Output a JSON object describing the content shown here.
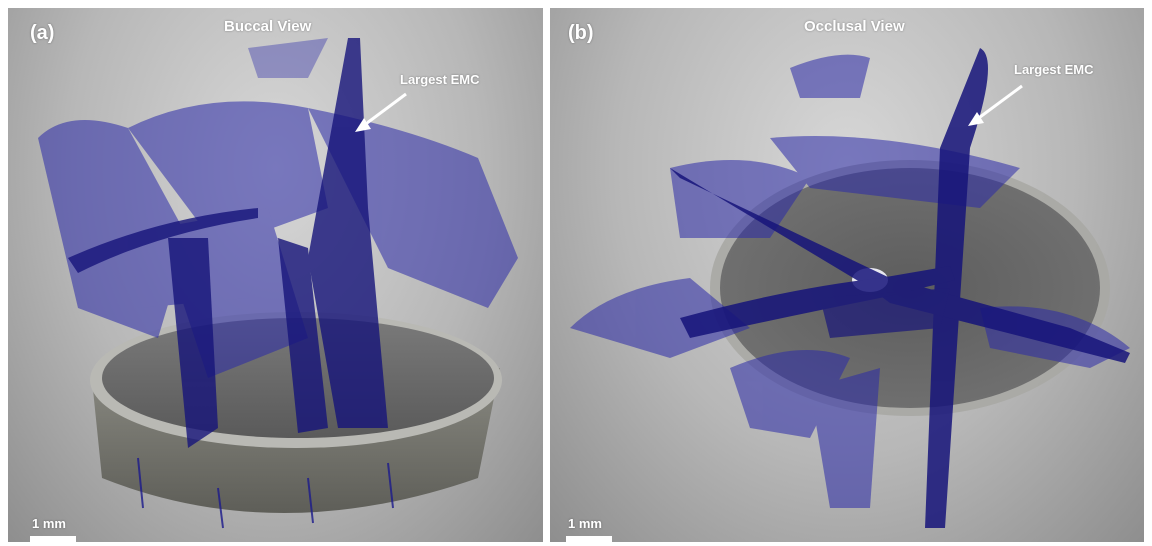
{
  "panels": [
    {
      "label": "(a)",
      "title": "Buccal View",
      "annotation": "Largest EMC",
      "scale_label": "1 mm"
    },
    {
      "label": "(b)",
      "title": "Occlusal View",
      "annotation": "Largest EMC",
      "scale_label": "1 mm"
    }
  ],
  "colors": {
    "background_gray": "#b7b7b7",
    "tooth_gray": "#6e6e6e",
    "crack_blue": "#1c1a8c",
    "text": "#ffffff"
  }
}
